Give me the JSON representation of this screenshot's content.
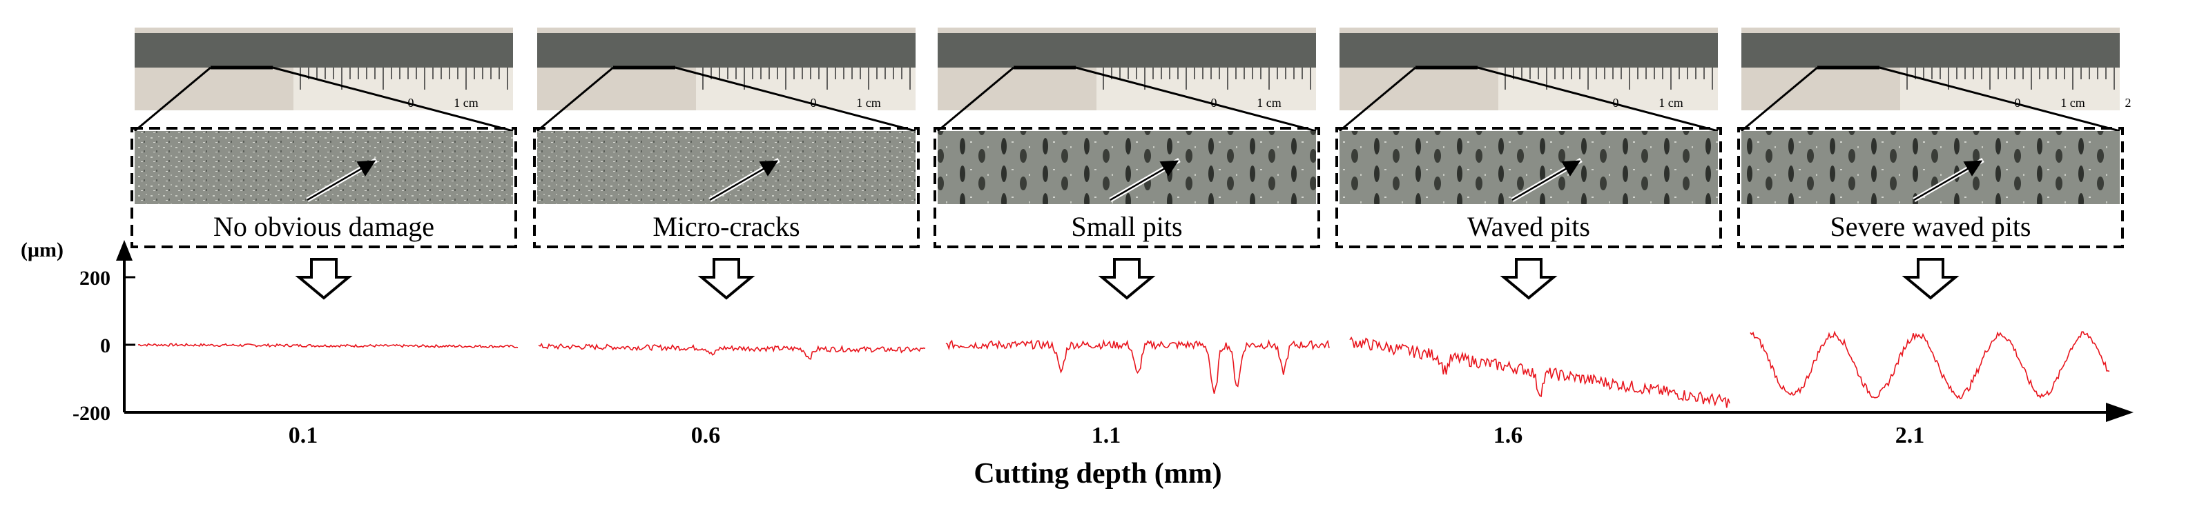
{
  "figure": {
    "panels": [
      {
        "damage_label": "No obvious damage",
        "depth": "0.1",
        "scale_ticks": [
          "0",
          "1 cm"
        ]
      },
      {
        "damage_label": "Micro-cracks",
        "depth": "0.6",
        "scale_ticks": [
          "0",
          "1 cm"
        ]
      },
      {
        "damage_label": "Small pits",
        "depth": "1.1",
        "scale_ticks": [
          "0",
          "1 cm"
        ]
      },
      {
        "damage_label": "Waved pits",
        "depth": "1.6",
        "scale_ticks": [
          "0",
          "1 cm"
        ]
      },
      {
        "damage_label": "Severe waved pits",
        "depth": "2.1",
        "scale_ticks": [
          "0",
          "1 cm",
          "2"
        ]
      }
    ],
    "colors": {
      "profile": "#e8141c",
      "axis": "#000000",
      "label_border": "#000000"
    }
  },
  "chart_data": {
    "type": "line",
    "xlabel": "Cutting depth (mm)",
    "yunit": "(μm)",
    "y_ticks": [
      "200",
      "0",
      "-200"
    ],
    "ylim": [
      -200,
      200
    ],
    "x_categories": [
      "0.1",
      "0.6",
      "1.1",
      "1.6",
      "2.1"
    ],
    "profiles": [
      {
        "depth": "0.1",
        "baseline": 0,
        "amplitude": 4,
        "pits": [],
        "waves": 0,
        "trend": -5
      },
      {
        "depth": "0.6",
        "baseline": -5,
        "amplitude": 8,
        "pits": [
          [
            0.45,
            -20
          ],
          [
            0.7,
            -25
          ]
        ],
        "waves": 0,
        "trend": -10
      },
      {
        "depth": "1.1",
        "baseline": 0,
        "amplitude": 12,
        "pits": [
          [
            0.3,
            -80
          ],
          [
            0.5,
            -90
          ],
          [
            0.7,
            -150
          ],
          [
            0.76,
            -120
          ],
          [
            0.88,
            -80
          ]
        ],
        "waves": 0,
        "trend": 0
      },
      {
        "depth": "1.6",
        "baseline": 10,
        "amplitude": 18,
        "pits": [
          [
            0.25,
            -40
          ],
          [
            0.5,
            -60
          ]
        ],
        "waves": 0,
        "trend": -180
      },
      {
        "depth": "2.1",
        "baseline": -60,
        "amplitude": 10,
        "pits": [],
        "waves": 4.3,
        "wave_amplitude": 90,
        "trend": 0
      }
    ]
  }
}
